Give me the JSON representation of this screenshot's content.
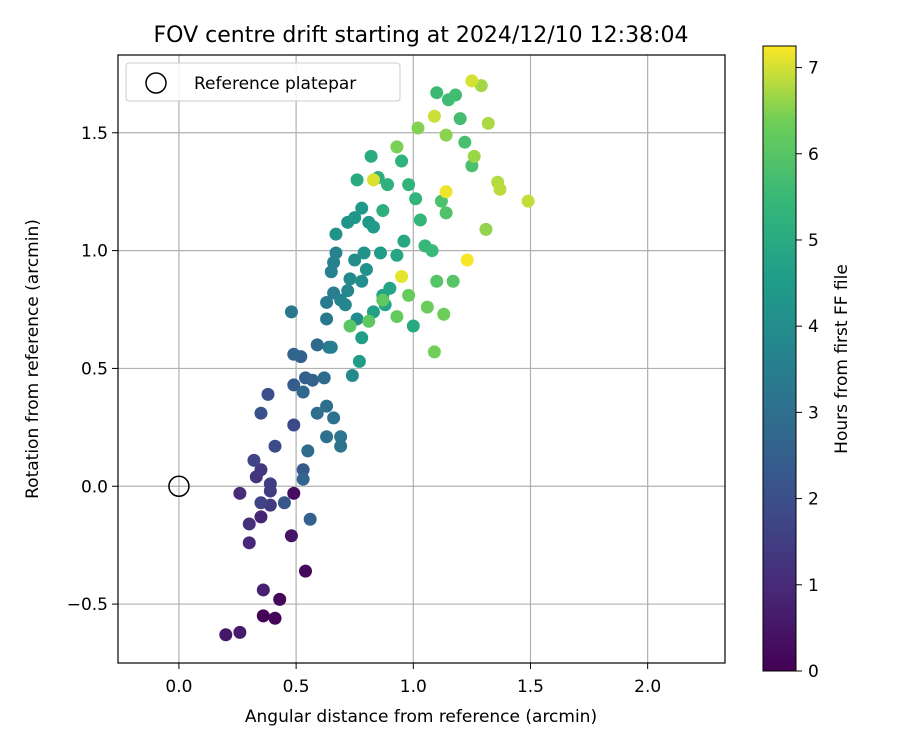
{
  "chart_data": {
    "type": "scatter",
    "title": "FOV centre drift starting at 2024/12/10 12:38:04",
    "xlabel": "Angular distance from reference (arcmin)",
    "ylabel": "Rotation from reference (arcmin)",
    "xlim": [
      -0.26,
      2.33
    ],
    "ylim": [
      -0.75,
      1.83
    ],
    "xticks": [
      0.0,
      0.5,
      1.0,
      1.5,
      2.0
    ],
    "yticks": [
      -0.5,
      0.0,
      0.5,
      1.0,
      1.5
    ],
    "xtick_labels": [
      "0.0",
      "0.5",
      "1.0",
      "1.5",
      "2.0"
    ],
    "ytick_labels": [
      "−0.5",
      "0.0",
      "0.5",
      "1.0",
      "1.5"
    ],
    "grid": true,
    "legend": {
      "placement": "top-left",
      "entries": [
        "Reference platepar"
      ]
    },
    "reference_point": {
      "name": "Reference platepar",
      "x": 0.0,
      "y": 0.0
    },
    "colorbar": {
      "label": "Hours from first FF file",
      "colormap": "viridis",
      "range": [
        0,
        7.25
      ],
      "ticks": [
        0,
        1,
        2,
        3,
        4,
        5,
        6,
        7
      ],
      "tick_labels": [
        "0",
        "1",
        "2",
        "3",
        "4",
        "5",
        "6",
        "7"
      ]
    },
    "series": [
      {
        "color_by": "hours",
        "points": [
          {
            "x": 0.36,
            "y": -0.55,
            "h": 0.05
          },
          {
            "x": 0.41,
            "y": -0.56,
            "h": 0.1
          },
          {
            "x": 0.43,
            "y": -0.48,
            "h": 0.15
          },
          {
            "x": 0.54,
            "y": -0.36,
            "h": 0.2
          },
          {
            "x": 0.49,
            "y": -0.03,
            "h": 0.3
          },
          {
            "x": 0.48,
            "y": -0.21,
            "h": 0.45
          },
          {
            "x": 0.2,
            "y": -0.63,
            "h": 0.55
          },
          {
            "x": 0.26,
            "y": -0.62,
            "h": 0.65
          },
          {
            "x": 0.36,
            "y": -0.44,
            "h": 0.75
          },
          {
            "x": 0.35,
            "y": -0.13,
            "h": 0.85
          },
          {
            "x": 0.3,
            "y": -0.24,
            "h": 0.95
          },
          {
            "x": 0.26,
            "y": -0.03,
            "h": 1.05
          },
          {
            "x": 0.3,
            "y": -0.16,
            "h": 1.15
          },
          {
            "x": 0.33,
            "y": 0.04,
            "h": 1.25
          },
          {
            "x": 0.35,
            "y": 0.07,
            "h": 1.35
          },
          {
            "x": 0.39,
            "y": -0.08,
            "h": 1.45
          },
          {
            "x": 0.39,
            "y": -0.02,
            "h": 1.5
          },
          {
            "x": 0.39,
            "y": 0.01,
            "h": 1.55
          },
          {
            "x": 0.35,
            "y": -0.07,
            "h": 1.65
          },
          {
            "x": 0.32,
            "y": 0.11,
            "h": 1.7
          },
          {
            "x": 0.49,
            "y": 0.26,
            "h": 1.8
          },
          {
            "x": 0.41,
            "y": 0.17,
            "h": 1.9
          },
          {
            "x": 0.38,
            "y": 0.39,
            "h": 2.0
          },
          {
            "x": 0.35,
            "y": 0.31,
            "h": 2.1
          },
          {
            "x": 0.45,
            "y": -0.07,
            "h": 2.2
          },
          {
            "x": 0.53,
            "y": 0.07,
            "h": 2.3
          },
          {
            "x": 0.49,
            "y": 0.43,
            "h": 2.4
          },
          {
            "x": 0.54,
            "y": 0.46,
            "h": 2.45
          },
          {
            "x": 0.52,
            "y": 0.55,
            "h": 2.5
          },
          {
            "x": 0.56,
            "y": -0.14,
            "h": 2.55
          },
          {
            "x": 0.57,
            "y": 0.45,
            "h": 2.6
          },
          {
            "x": 0.49,
            "y": 0.56,
            "h": 2.65
          },
          {
            "x": 0.53,
            "y": 0.03,
            "h": 2.7
          },
          {
            "x": 0.53,
            "y": 0.4,
            "h": 2.75
          },
          {
            "x": 0.59,
            "y": 0.6,
            "h": 2.8
          },
          {
            "x": 0.62,
            "y": 0.46,
            "h": 2.85
          },
          {
            "x": 0.55,
            "y": 0.15,
            "h": 2.9
          },
          {
            "x": 0.59,
            "y": 0.31,
            "h": 2.95
          },
          {
            "x": 0.63,
            "y": 0.34,
            "h": 3.0
          },
          {
            "x": 0.63,
            "y": 0.21,
            "h": 3.05
          },
          {
            "x": 0.66,
            "y": 0.29,
            "h": 3.1
          },
          {
            "x": 0.69,
            "y": 0.17,
            "h": 3.15
          },
          {
            "x": 0.69,
            "y": 0.21,
            "h": 3.2
          },
          {
            "x": 0.48,
            "y": 0.74,
            "h": 3.25
          },
          {
            "x": 0.63,
            "y": 0.71,
            "h": 3.3
          },
          {
            "x": 0.63,
            "y": 0.78,
            "h": 3.35
          },
          {
            "x": 0.64,
            "y": 0.59,
            "h": 3.4
          },
          {
            "x": 0.65,
            "y": 0.59,
            "h": 3.45
          },
          {
            "x": 0.66,
            "y": 0.82,
            "h": 3.5
          },
          {
            "x": 0.65,
            "y": 0.91,
            "h": 3.55
          },
          {
            "x": 0.66,
            "y": 0.95,
            "h": 3.6
          },
          {
            "x": 0.67,
            "y": 0.99,
            "h": 3.65
          },
          {
            "x": 0.69,
            "y": 0.79,
            "h": 3.7
          },
          {
            "x": 0.71,
            "y": 0.77,
            "h": 3.75
          },
          {
            "x": 0.72,
            "y": 0.83,
            "h": 3.8
          },
          {
            "x": 0.73,
            "y": 0.88,
            "h": 3.85
          },
          {
            "x": 0.74,
            "y": 0.47,
            "h": 3.9
          },
          {
            "x": 0.76,
            "y": 0.71,
            "h": 3.95
          },
          {
            "x": 0.75,
            "y": 0.96,
            "h": 4.0
          },
          {
            "x": 0.78,
            "y": 0.87,
            "h": 4.05
          },
          {
            "x": 0.8,
            "y": 0.92,
            "h": 4.1
          },
          {
            "x": 0.79,
            "y": 0.99,
            "h": 4.15
          },
          {
            "x": 0.67,
            "y": 1.07,
            "h": 4.2
          },
          {
            "x": 0.72,
            "y": 1.12,
            "h": 4.25
          },
          {
            "x": 0.75,
            "y": 1.14,
            "h": 4.3
          },
          {
            "x": 0.78,
            "y": 1.18,
            "h": 4.35
          },
          {
            "x": 0.81,
            "y": 1.12,
            "h": 4.4
          },
          {
            "x": 0.83,
            "y": 1.1,
            "h": 4.45
          },
          {
            "x": 0.86,
            "y": 0.99,
            "h": 4.5
          },
          {
            "x": 0.77,
            "y": 0.53,
            "h": 4.55
          },
          {
            "x": 0.78,
            "y": 0.63,
            "h": 4.6
          },
          {
            "x": 0.83,
            "y": 0.74,
            "h": 4.65
          },
          {
            "x": 0.87,
            "y": 0.81,
            "h": 4.7
          },
          {
            "x": 0.88,
            "y": 0.77,
            "h": 4.75
          },
          {
            "x": 0.9,
            "y": 0.84,
            "h": 4.8
          },
          {
            "x": 0.93,
            "y": 0.98,
            "h": 4.85
          },
          {
            "x": 0.96,
            "y": 1.04,
            "h": 4.9
          },
          {
            "x": 1.0,
            "y": 0.68,
            "h": 4.95
          },
          {
            "x": 0.76,
            "y": 1.3,
            "h": 5.0
          },
          {
            "x": 0.82,
            "y": 1.4,
            "h": 5.05
          },
          {
            "x": 0.85,
            "y": 1.31,
            "h": 5.1
          },
          {
            "x": 0.87,
            "y": 1.17,
            "h": 5.15
          },
          {
            "x": 0.89,
            "y": 1.28,
            "h": 5.2
          },
          {
            "x": 0.95,
            "y": 1.38,
            "h": 5.25
          },
          {
            "x": 0.98,
            "y": 1.28,
            "h": 5.3
          },
          {
            "x": 1.01,
            "y": 1.22,
            "h": 5.35
          },
          {
            "x": 1.03,
            "y": 1.13,
            "h": 5.4
          },
          {
            "x": 1.05,
            "y": 1.02,
            "h": 5.45
          },
          {
            "x": 1.08,
            "y": 1.0,
            "h": 5.5
          },
          {
            "x": 1.1,
            "y": 1.67,
            "h": 5.55
          },
          {
            "x": 1.15,
            "y": 1.64,
            "h": 5.6
          },
          {
            "x": 1.18,
            "y": 1.66,
            "h": 5.65
          },
          {
            "x": 1.2,
            "y": 1.56,
            "h": 5.7
          },
          {
            "x": 1.22,
            "y": 1.46,
            "h": 5.75
          },
          {
            "x": 1.25,
            "y": 1.36,
            "h": 5.8
          },
          {
            "x": 1.12,
            "y": 1.21,
            "h": 5.85
          },
          {
            "x": 1.14,
            "y": 1.16,
            "h": 5.9
          },
          {
            "x": 1.1,
            "y": 0.87,
            "h": 5.95
          },
          {
            "x": 1.17,
            "y": 0.87,
            "h": 6.0
          },
          {
            "x": 0.73,
            "y": 0.68,
            "h": 6.05
          },
          {
            "x": 0.81,
            "y": 0.7,
            "h": 6.1
          },
          {
            "x": 0.87,
            "y": 0.79,
            "h": 6.15
          },
          {
            "x": 0.93,
            "y": 0.72,
            "h": 6.2
          },
          {
            "x": 0.98,
            "y": 0.81,
            "h": 6.25
          },
          {
            "x": 1.06,
            "y": 0.76,
            "h": 6.3
          },
          {
            "x": 1.13,
            "y": 0.73,
            "h": 6.35
          },
          {
            "x": 1.09,
            "y": 0.57,
            "h": 6.4
          },
          {
            "x": 0.93,
            "y": 1.44,
            "h": 6.45
          },
          {
            "x": 1.02,
            "y": 1.52,
            "h": 6.5
          },
          {
            "x": 1.14,
            "y": 1.49,
            "h": 6.55
          },
          {
            "x": 1.31,
            "y": 1.09,
            "h": 6.6
          },
          {
            "x": 1.26,
            "y": 1.4,
            "h": 6.65
          },
          {
            "x": 1.29,
            "y": 1.7,
            "h": 6.7
          },
          {
            "x": 1.32,
            "y": 1.54,
            "h": 6.75
          },
          {
            "x": 1.36,
            "y": 1.29,
            "h": 6.8
          },
          {
            "x": 1.37,
            "y": 1.26,
            "h": 6.85
          },
          {
            "x": 1.49,
            "y": 1.21,
            "h": 6.9
          },
          {
            "x": 1.09,
            "y": 1.57,
            "h": 6.95
          },
          {
            "x": 1.25,
            "y": 1.72,
            "h": 7.0
          },
          {
            "x": 0.83,
            "y": 1.3,
            "h": 7.05
          },
          {
            "x": 0.95,
            "y": 0.89,
            "h": 7.1
          },
          {
            "x": 1.14,
            "y": 1.25,
            "h": 7.15
          },
          {
            "x": 1.23,
            "y": 0.96,
            "h": 7.2
          }
        ]
      }
    ]
  }
}
